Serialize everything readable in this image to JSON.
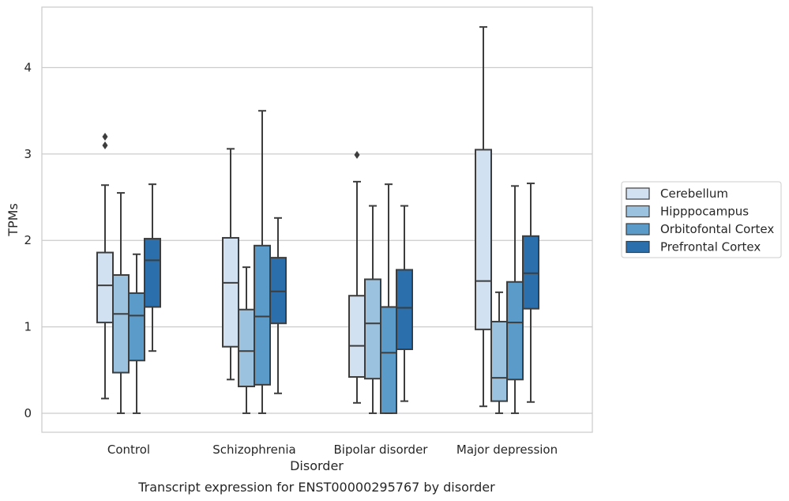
{
  "chart_data": {
    "type": "boxplot",
    "caption": "Transcript expression for ENST00000295767 by disorder",
    "xlabel": "Disorder",
    "ylabel": "TPMs",
    "ylim": [
      -0.22,
      4.7
    ],
    "yticks": [
      0,
      1,
      2,
      3,
      4
    ],
    "grid": true,
    "legend_position": "right",
    "categories": [
      "Control",
      "Schizophrenia",
      "Bipolar disorder",
      "Major depression"
    ],
    "series": [
      {
        "name": "Cerebellum",
        "color": "#d1e1f1",
        "boxes": [
          {
            "whislo": 0.17,
            "q1": 1.05,
            "med": 1.48,
            "q3": 1.86,
            "whishi": 2.64,
            "fliers": [
              3.1,
              3.2
            ]
          },
          {
            "whislo": 0.39,
            "q1": 0.77,
            "med": 1.51,
            "q3": 2.03,
            "whishi": 3.06,
            "fliers": []
          },
          {
            "whislo": 0.12,
            "q1": 0.42,
            "med": 0.78,
            "q3": 1.36,
            "whishi": 2.68,
            "fliers": [
              2.99
            ]
          },
          {
            "whislo": 0.08,
            "q1": 0.97,
            "med": 1.53,
            "q3": 3.05,
            "whishi": 4.47,
            "fliers": []
          }
        ]
      },
      {
        "name": "Hipppocampus",
        "color": "#9bc2de",
        "boxes": [
          {
            "whislo": 0.0,
            "q1": 0.47,
            "med": 1.15,
            "q3": 1.6,
            "whishi": 2.55,
            "fliers": []
          },
          {
            "whislo": 0.0,
            "q1": 0.31,
            "med": 0.72,
            "q3": 1.2,
            "whishi": 1.69,
            "fliers": []
          },
          {
            "whislo": 0.0,
            "q1": 0.4,
            "med": 1.04,
            "q3": 1.55,
            "whishi": 2.4,
            "fliers": []
          },
          {
            "whislo": 0.0,
            "q1": 0.14,
            "med": 0.41,
            "q3": 1.06,
            "whishi": 1.4,
            "fliers": []
          }
        ]
      },
      {
        "name": "Orbitofontal Cortex",
        "color": "#5b9bc9",
        "boxes": [
          {
            "whislo": 0.0,
            "q1": 0.61,
            "med": 1.13,
            "q3": 1.39,
            "whishi": 1.84,
            "fliers": []
          },
          {
            "whislo": 0.0,
            "q1": 0.33,
            "med": 1.12,
            "q3": 1.94,
            "whishi": 3.5,
            "fliers": []
          },
          {
            "whislo": 0.0,
            "q1": 0.0,
            "med": 0.7,
            "q3": 1.23,
            "whishi": 2.65,
            "fliers": []
          },
          {
            "whislo": 0.0,
            "q1": 0.39,
            "med": 1.05,
            "q3": 1.52,
            "whishi": 2.63,
            "fliers": []
          }
        ]
      },
      {
        "name": "Prefrontal Cortex",
        "color": "#2b6fad",
        "boxes": [
          {
            "whislo": 0.72,
            "q1": 1.23,
            "med": 1.77,
            "q3": 2.02,
            "whishi": 2.65,
            "fliers": []
          },
          {
            "whislo": 0.23,
            "q1": 1.04,
            "med": 1.41,
            "q3": 1.8,
            "whishi": 2.26,
            "fliers": []
          },
          {
            "whislo": 0.14,
            "q1": 0.74,
            "med": 1.22,
            "q3": 1.66,
            "whishi": 2.4,
            "fliers": []
          },
          {
            "whislo": 0.13,
            "q1": 1.21,
            "med": 1.62,
            "q3": 2.05,
            "whishi": 2.66,
            "fliers": []
          }
        ]
      }
    ]
  }
}
